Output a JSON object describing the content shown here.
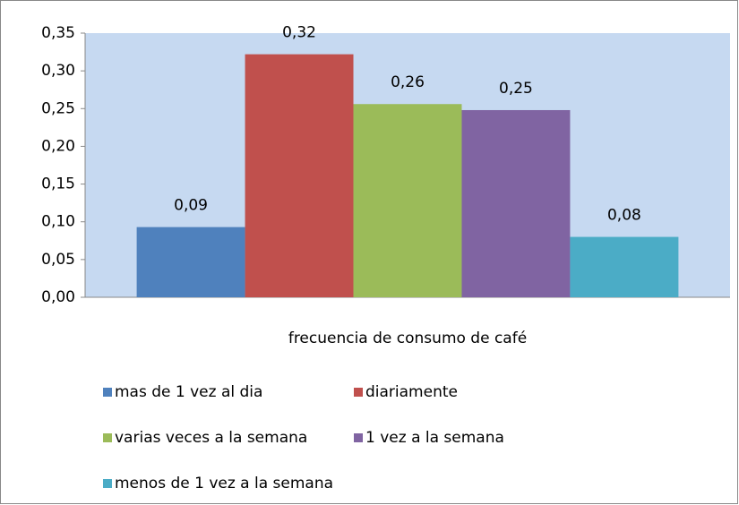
{
  "chart_data": {
    "type": "bar",
    "categories": [
      "frecuencia de consumo de café"
    ],
    "series": [
      {
        "name": "mas de 1 vez al dia",
        "color": "#4f81bd",
        "values": [
          0.093
        ],
        "value_labels": [
          "0,09"
        ]
      },
      {
        "name": "diariamente",
        "color": "#c0504d",
        "values": [
          0.322
        ],
        "value_labels": [
          "0,32"
        ]
      },
      {
        "name": "varias veces a la semana",
        "color": "#9bbb59",
        "values": [
          0.256
        ],
        "value_labels": [
          "0,26"
        ]
      },
      {
        "name": "1 vez a la semana",
        "color": "#8064a2",
        "values": [
          0.248
        ],
        "value_labels": [
          "0,25"
        ]
      },
      {
        "name": "menos de 1 vez a la semana",
        "color": "#4bacc6",
        "values": [
          0.08
        ],
        "value_labels": [
          "0,08"
        ]
      }
    ],
    "ylim": [
      0,
      0.35
    ],
    "yticks": [
      {
        "value": 0,
        "label": "0,00"
      },
      {
        "value": 0.05,
        "label": "0,05"
      },
      {
        "value": 0.1,
        "label": "0,10"
      },
      {
        "value": 0.15,
        "label": "0,15"
      },
      {
        "value": 0.2,
        "label": "0,20"
      },
      {
        "value": 0.25,
        "label": "0,25"
      },
      {
        "value": 0.3,
        "label": "0,30"
      },
      {
        "value": 0.35,
        "label": "0,35"
      }
    ],
    "plot_background": "#c6d9f1"
  }
}
